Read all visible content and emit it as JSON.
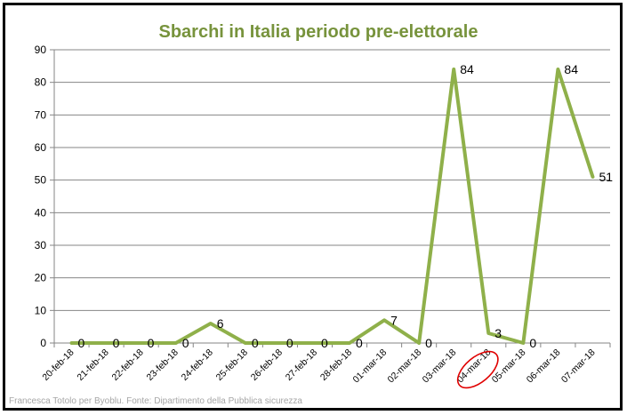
{
  "chart_data": {
    "type": "line",
    "title": "Sbarchi in Italia periodo pre-elettorale",
    "categories": [
      "20-feb-18",
      "21-feb-18",
      "22-feb-18",
      "23-feb-18",
      "24-feb-18",
      "25-feb-18",
      "26-feb-18",
      "27-feb-18",
      "28-feb-18",
      "01-mar-18",
      "02-mar-18",
      "03-mar-18",
      "04-mar-18",
      "05-mar-18",
      "06-mar-18",
      "07-mar-18"
    ],
    "series": [
      {
        "values": [
          0,
          0,
          0,
          0,
          6,
          0,
          0,
          0,
          0,
          7,
          0,
          84,
          3,
          0,
          84,
          51
        ],
        "color": "#8fb04a"
      }
    ],
    "data_labels": [
      "0",
      "0",
      "0",
      "0",
      "6",
      "0",
      "0",
      "0",
      "0",
      "7",
      "0",
      "84",
      "3",
      "0",
      "84",
      "51"
    ],
    "yticks": [
      "0",
      "10",
      "20",
      "30",
      "40",
      "50",
      "60",
      "70",
      "80",
      "90"
    ],
    "ylim": [
      0,
      90
    ],
    "grid": true,
    "highlighted_category": "04-mar-18",
    "highlight_color": "#e00000"
  },
  "credit": "Francesca Totolo per Byoblu. Fonte: Dipartimento della Pubblica sicurezza"
}
